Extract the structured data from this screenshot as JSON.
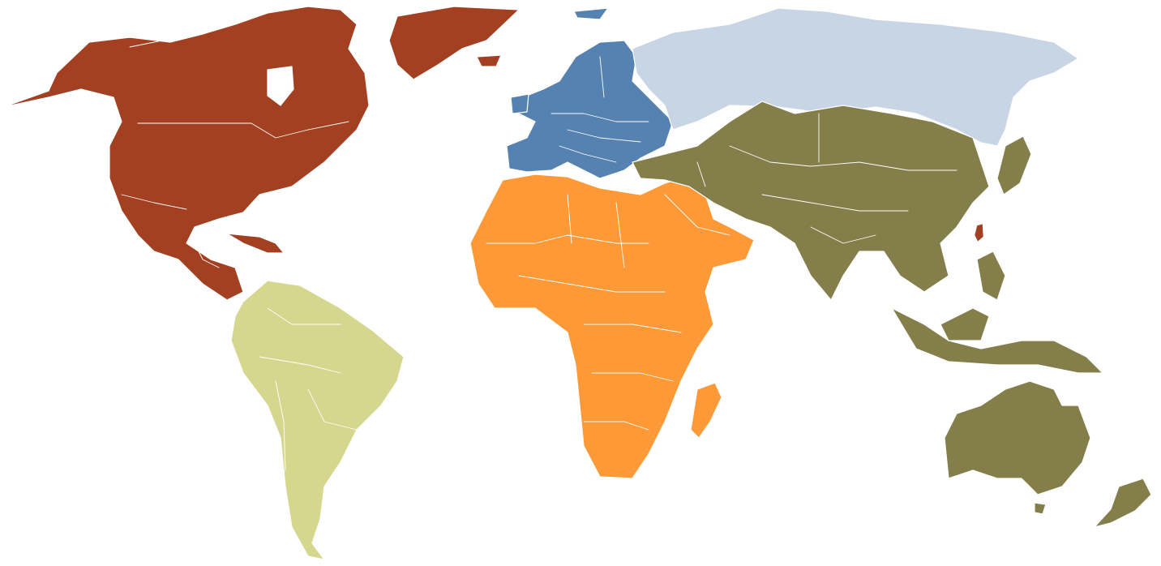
{
  "map": {
    "regions": [
      {
        "id": "north-america",
        "color": "#A34022"
      },
      {
        "id": "south-america",
        "color": "#D6D78F"
      },
      {
        "id": "europe",
        "color": "#5582B0"
      },
      {
        "id": "russia",
        "color": "#C8D5E5"
      },
      {
        "id": "africa-middle-east",
        "color": "#FD9A37"
      },
      {
        "id": "asia-oceania",
        "color": "#837E4A"
      }
    ],
    "highlight": {
      "id": "taiwan",
      "color": "#A34022"
    }
  }
}
